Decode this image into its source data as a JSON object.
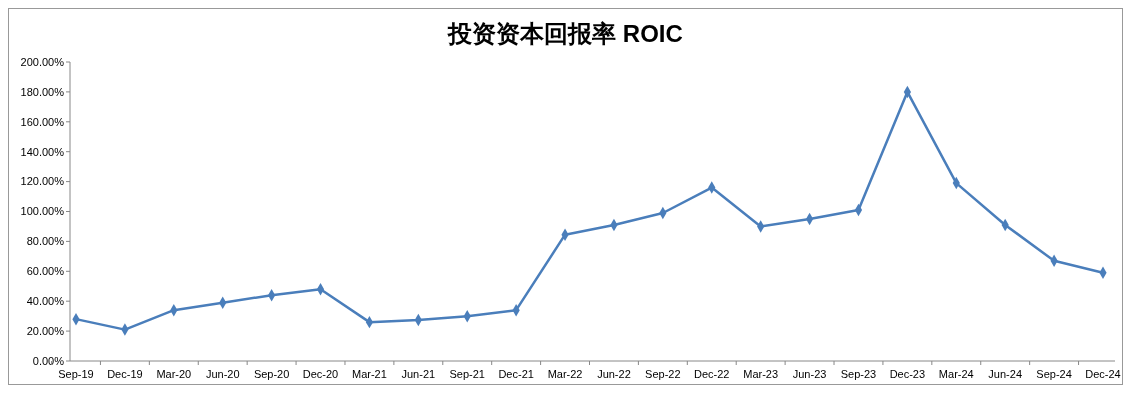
{
  "chart_data": {
    "type": "line",
    "title": "投资资本回报率 ROIC",
    "categories": [
      "Sep-19",
      "Dec-19",
      "Mar-20",
      "Jun-20",
      "Sep-20",
      "Dec-20",
      "Mar-21",
      "Jun-21",
      "Sep-21",
      "Dec-21",
      "Mar-22",
      "Jun-22",
      "Sep-22",
      "Dec-22",
      "Mar-23",
      "Jun-23",
      "Sep-23",
      "Dec-23",
      "Mar-24",
      "Jun-24",
      "Sep-24",
      "Dec-24"
    ],
    "series": [
      {
        "color": "#4a7ebb",
        "values": [
          28,
          21,
          34,
          39,
          44,
          48,
          26,
          27.5,
          30,
          34,
          84.5,
          91,
          99,
          116,
          90,
          95,
          101,
          180,
          119,
          91,
          67,
          59
        ]
      }
    ],
    "ylim": [
      0,
      200
    ],
    "yticks": [
      {
        "value": 0,
        "label": "0.00%"
      },
      {
        "value": 20,
        "label": "20.00%"
      },
      {
        "value": 40,
        "label": "40.00%"
      },
      {
        "value": 60,
        "label": "60.00%"
      },
      {
        "value": 80,
        "label": "80.00%"
      },
      {
        "value": 100,
        "label": "100.00%"
      },
      {
        "value": 120,
        "label": "120.00%"
      },
      {
        "value": 140,
        "label": "140.00%"
      },
      {
        "value": 160,
        "label": "160.00%"
      },
      {
        "value": 180,
        "label": "180.00%"
      },
      {
        "value": 200,
        "label": "200.00%"
      }
    ],
    "marker": "diamond"
  }
}
